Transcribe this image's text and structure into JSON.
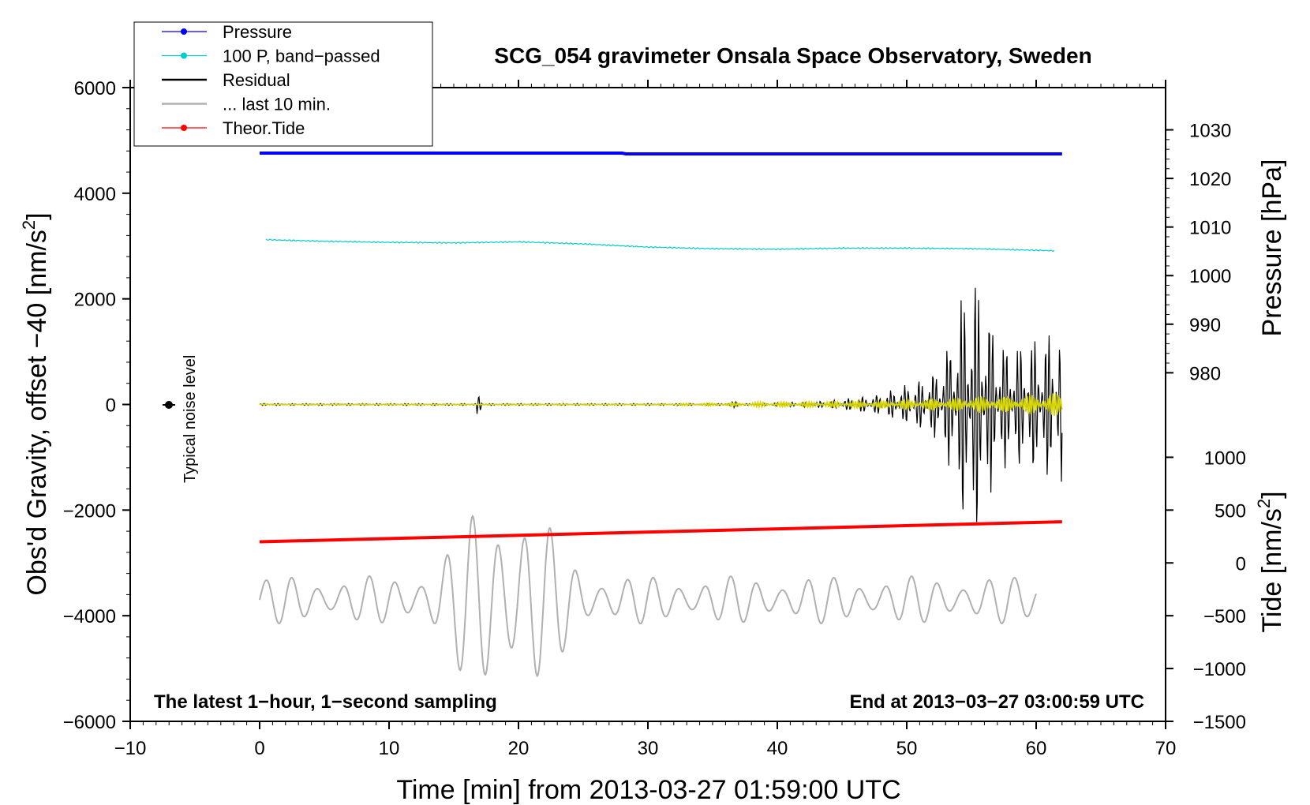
{
  "chart_data": {
    "type": "line",
    "title": "SCG_054 gravimeter Onsala Space Observatory, Sweden",
    "xlabel": "Time [min] from 2013-03-27 01:59:00 UTC",
    "ylabel_left": "Obs'd Gravity, offset −40 [nm/s",
    "ylabel_left_sup": "2",
    "ylabel_left_close": "]",
    "ylabel_right_pressure": "Pressure [hPa]",
    "ylabel_right_tide": "Tide [nm/s",
    "ylabel_right_tide_sup": "2",
    "ylabel_right_tide_close": "]",
    "xlim": [
      -10,
      70
    ],
    "ylim_left": [
      -6000,
      6000
    ],
    "x_ticks": [
      "−10",
      "0",
      "10",
      "20",
      "30",
      "40",
      "50",
      "60",
      "70"
    ],
    "x_tick_values": [
      -10,
      0,
      10,
      20,
      30,
      40,
      50,
      60,
      70
    ],
    "y_left_ticks": [
      "6000",
      "4000",
      "2000",
      "0",
      "−2000",
      "−4000",
      "−6000"
    ],
    "y_left_tick_values": [
      6000,
      4000,
      2000,
      0,
      -2000,
      -4000,
      -6000
    ],
    "pressure_axis": {
      "ticks": [
        "1030",
        "1020",
        "1010",
        "1000",
        "990",
        "980"
      ],
      "tick_values": [
        1030,
        1020,
        1010,
        1000,
        990,
        980
      ],
      "gravity_equivalent": [
        5200,
        4280,
        3360,
        2440,
        1520,
        600
      ]
    },
    "tide_axis": {
      "ticks": [
        "1000",
        "500",
        "0",
        "−500",
        "−1000",
        "−1500"
      ],
      "tick_values": [
        1000,
        500,
        0,
        -500,
        -1000,
        -1500
      ],
      "gravity_equivalent": [
        -1000,
        -2000,
        -3000,
        -4000,
        -5000,
        -6000
      ]
    },
    "legend": {
      "placement": "top-left",
      "entries": [
        {
          "label": "Pressure",
          "color": "#0000ff",
          "marker": true
        },
        {
          "label": "100 P, band−passed",
          "color": "#00cccc",
          "marker": true
        },
        {
          "label": "Residual",
          "color": "#000000",
          "marker": false
        },
        {
          "label": "... last 10 min.",
          "color": "#b0b0b0",
          "marker": false
        },
        {
          "label": "Theor.Tide",
          "color": "#ff0000",
          "marker": true
        }
      ]
    },
    "annotations": {
      "left": "The latest 1−hour, 1−second sampling",
      "right": "End at 2013−03−27 03:00:59 UTC",
      "noise": "Typical noise level"
    },
    "noise_marker": {
      "x": -7,
      "y": 0,
      "error": 80
    },
    "series": [
      {
        "name": "Pressure",
        "color": "#0000ff",
        "x": [
          0,
          10,
          20,
          28,
          28.3,
          40,
          50,
          62
        ],
        "y": [
          4760,
          4760,
          4760,
          4760,
          4745,
          4745,
          4745,
          4745
        ]
      },
      {
        "name": "100 P, band−passed",
        "color": "#00cccc",
        "x": [
          0.5,
          5,
          10,
          15,
          20,
          25,
          30,
          35,
          40,
          45,
          50,
          55,
          60,
          61.5
        ],
        "y": [
          3120,
          3090,
          3070,
          3060,
          3080,
          3040,
          2980,
          2950,
          2940,
          2960,
          2960,
          2950,
          2920,
          2910
        ]
      },
      {
        "name": "Theor.Tide",
        "color": "#ff0000",
        "x": [
          0,
          62
        ],
        "y": [
          -2600,
          -2220
        ]
      },
      {
        "name": "Residual",
        "color": "#000000",
        "x_range": [
          0,
          62
        ],
        "peak_at": 55,
        "max_amplitude": 2150
      },
      {
        "name": "Residual, filtered",
        "color": "#d4d400",
        "x_range": [
          0,
          62
        ]
      },
      {
        "name": "... last 10 min.",
        "color": "#b0b0b0",
        "x_range": [
          0,
          60
        ],
        "baseline": -3700,
        "max_amplitude": 2200
      }
    ]
  }
}
